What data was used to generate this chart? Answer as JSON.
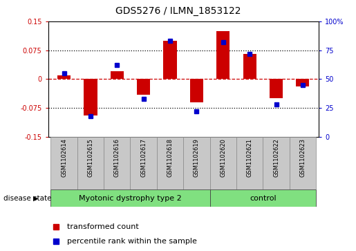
{
  "title": "GDS5276 / ILMN_1853122",
  "samples": [
    "GSM1102614",
    "GSM1102615",
    "GSM1102616",
    "GSM1102617",
    "GSM1102618",
    "GSM1102619",
    "GSM1102620",
    "GSM1102621",
    "GSM1102622",
    "GSM1102623"
  ],
  "red_values": [
    0.01,
    -0.095,
    0.02,
    -0.04,
    0.1,
    -0.06,
    0.125,
    0.065,
    -0.05,
    -0.02
  ],
  "blue_values": [
    55,
    18,
    62,
    33,
    83,
    22,
    82,
    72,
    28,
    45
  ],
  "ylim_left": [
    -0.15,
    0.15
  ],
  "ylim_right": [
    0,
    100
  ],
  "yticks_left": [
    -0.15,
    -0.075,
    0,
    0.075,
    0.15
  ],
  "yticks_right": [
    0,
    25,
    50,
    75,
    100
  ],
  "ytick_labels_left": [
    "-0.15",
    "-0.075",
    "0",
    "0.075",
    "0.15"
  ],
  "ytick_labels_right": [
    "0",
    "25",
    "50",
    "75",
    "100%"
  ],
  "hlines_dotted": [
    0.075,
    -0.075
  ],
  "hline_dashed": 0.0,
  "red_color": "#cc0000",
  "blue_color": "#0000cc",
  "bar_width": 0.5,
  "legend_labels": [
    "transformed count",
    "percentile rank within the sample"
  ],
  "disease_state_label": "disease state",
  "group_label_1": "Myotonic dystrophy type 2",
  "group_label_2": "control",
  "n_disease": 6,
  "n_control": 4,
  "group_bg_color": "#c8c8c8",
  "group_green_color": "#80e080",
  "title_fontsize": 10,
  "tick_fontsize": 7,
  "sample_fontsize": 6,
  "group_fontsize": 8,
  "legend_fontsize": 8
}
